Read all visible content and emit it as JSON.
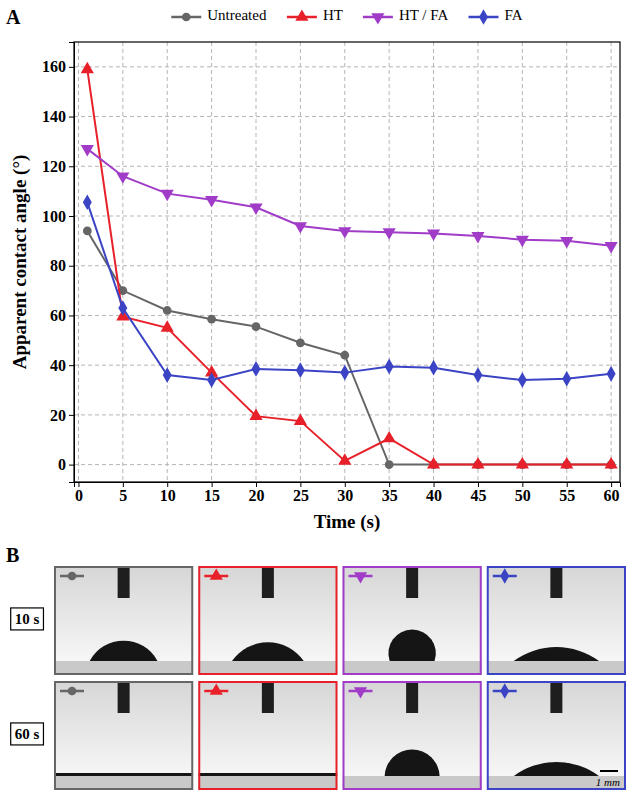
{
  "chart_data": {
    "type": "line",
    "panel_label": "A",
    "x_label": "Time (s)",
    "y_label": "Apparent contact angle (°)",
    "x": [
      1,
      5,
      10,
      15,
      20,
      25,
      30,
      35,
      40,
      45,
      50,
      55,
      60
    ],
    "series": [
      {
        "name": "Untreated",
        "color": "#666666",
        "marker": "circle",
        "values": [
          94,
          70,
          62,
          58.5,
          55.5,
          49,
          44,
          0,
          0,
          0,
          0,
          0,
          0
        ]
      },
      {
        "name": "HT",
        "color": "#e8202a",
        "marker": "triangle-up",
        "values": [
          159,
          59.5,
          55,
          37,
          19.5,
          17.5,
          1.5,
          10.5,
          0,
          0,
          0,
          0,
          0
        ]
      },
      {
        "name": "HT / FA",
        "color": "#a03cc8",
        "marker": "triangle-down",
        "values": [
          127,
          116,
          109,
          106.5,
          103.5,
          96,
          94,
          93.5,
          93,
          92,
          90.5,
          90,
          88
        ]
      },
      {
        "name": "FA",
        "color": "#3a44c4",
        "marker": "diamond",
        "values": [
          105.5,
          63,
          36,
          34,
          38.5,
          38,
          37,
          39.5,
          39,
          36,
          34,
          34.5,
          36.5
        ]
      }
    ],
    "xlim": [
      -0.5,
      61
    ],
    "xticks": [
      0,
      5,
      10,
      15,
      20,
      25,
      30,
      35,
      40,
      45,
      50,
      55,
      60
    ],
    "ylim": [
      -7,
      170
    ],
    "yticks": [
      0,
      20,
      40,
      60,
      80,
      100,
      120,
      140,
      160
    ],
    "grid": true,
    "legend": "top"
  },
  "panel_b": {
    "panel_label": "B",
    "rows": [
      {
        "label": "10 s",
        "time": 10
      },
      {
        "label": "60 s",
        "time": 60
      }
    ],
    "scale_bar": "1 mm"
  }
}
